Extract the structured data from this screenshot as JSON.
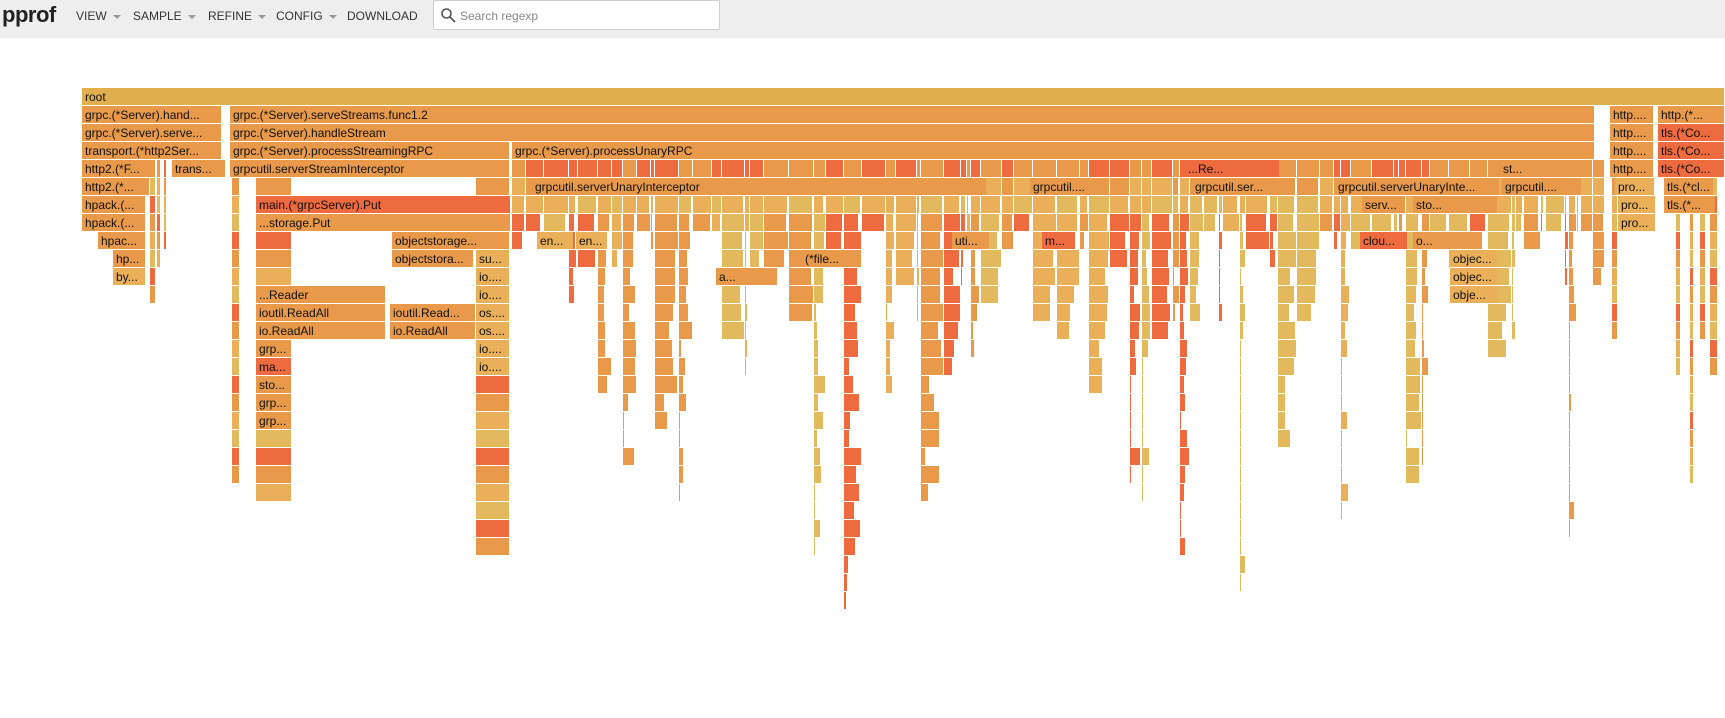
{
  "app": {
    "title": "pprof"
  },
  "menu": [
    {
      "label": "VIEW",
      "dropdown": true
    },
    {
      "label": "SAMPLE",
      "dropdown": true
    },
    {
      "label": "REFINE",
      "dropdown": true
    },
    {
      "label": "CONFIG",
      "dropdown": true
    },
    {
      "label": "DOWNLOAD",
      "dropdown": false
    }
  ],
  "search": {
    "placeholder": "Search regexp",
    "value": ""
  },
  "colors": {
    "root": "#e0b04f",
    "orange": "#e89a4a",
    "red_orange": "#ee6a3f",
    "light_orange": "#eab059",
    "yellow": "#e2b95c"
  },
  "flame": {
    "rows": [
      [
        {
          "label": "root",
          "color": "root",
          "span": "full"
        }
      ],
      [
        {
          "label": "grpc.(*Server).hand...",
          "color": "orange"
        },
        {
          "label": "grpc.(*Server).serveStreams.func1.2",
          "color": "orange"
        },
        {
          "label": "http....",
          "color": "orange"
        },
        {
          "label": "http.(*...",
          "color": "orange"
        }
      ],
      [
        {
          "label": "grpc.(*Server).serve...",
          "color": "orange"
        },
        {
          "label": "grpc.(*Server).handleStream",
          "color": "orange"
        },
        {
          "label": "http....",
          "color": "orange"
        },
        {
          "label": "tls.(*Co...",
          "color": "red_orange"
        }
      ],
      [
        {
          "label": "transport.(*http2Ser...",
          "color": "orange"
        },
        {
          "label": "grpc.(*Server).processStreamingRPC",
          "color": "orange"
        },
        {
          "label": "grpc.(*Server).processUnaryRPC",
          "color": "orange"
        },
        {
          "label": "http....",
          "color": "orange"
        },
        {
          "label": "tls.(*Co...",
          "color": "red_orange"
        }
      ],
      [
        {
          "label": "http2.(*F...",
          "color": "orange"
        },
        {
          "label": "trans...",
          "color": "orange"
        },
        {
          "label": "grpcutil.serverStreamInterceptor",
          "color": "orange"
        },
        {
          "label": "...Re...",
          "color": "red_orange"
        },
        {
          "label": "st...",
          "color": "orange"
        },
        {
          "label": "http....",
          "color": "orange"
        },
        {
          "label": "tls.(*Co...",
          "color": "red_orange"
        }
      ],
      [
        {
          "label": "http2.(*...",
          "color": "orange"
        },
        {
          "label": "grpcutil.serverUnaryInterceptor",
          "color": "orange"
        },
        {
          "label": "grpcutil....",
          "color": "orange"
        },
        {
          "label": "grpcutil.ser...",
          "color": "orange"
        },
        {
          "label": "grpcutil.serverUnaryInte...",
          "color": "orange"
        },
        {
          "label": "grpcutil....",
          "color": "orange"
        },
        {
          "label": "pro...",
          "color": "light_orange"
        },
        {
          "label": "tls.(*cl...",
          "color": "orange"
        }
      ],
      [
        {
          "label": "hpack.(...",
          "color": "orange"
        },
        {
          "label": "main.(*grpcServer).Put",
          "color": "red_orange"
        },
        {
          "label": "serv...",
          "color": "orange"
        },
        {
          "label": "sto...",
          "color": "orange"
        },
        {
          "label": "pro...",
          "color": "light_orange"
        },
        {
          "label": "tls.(*...",
          "color": "orange"
        }
      ],
      [
        {
          "label": "hpack.(...",
          "color": "orange"
        },
        {
          "label": "...storage.Put",
          "color": "orange"
        },
        {
          "label": "pro...",
          "color": "light_orange"
        }
      ],
      [
        {
          "label": "hpac...",
          "color": "orange"
        },
        {
          "label": "objectstorage...",
          "color": "orange"
        },
        {
          "label": "en...",
          "color": "light_orange"
        },
        {
          "label": "en...",
          "color": "light_orange"
        },
        {
          "label": "uti...",
          "color": "orange"
        },
        {
          "label": "m...",
          "color": "red_orange"
        },
        {
          "label": "clou...",
          "color": "red_orange"
        },
        {
          "label": "o...",
          "color": "orange"
        }
      ],
      [
        {
          "label": "hp...",
          "color": "orange"
        },
        {
          "label": "objectstora...",
          "color": "orange"
        },
        {
          "label": "su...",
          "color": "light_orange"
        },
        {
          "label": "(*file...",
          "color": "orange"
        },
        {
          "label": "objec...",
          "color": "light_orange"
        }
      ],
      [
        {
          "label": "by...",
          "color": "light_orange"
        },
        {
          "label": "io....",
          "color": "light_orange"
        },
        {
          "label": "a...",
          "color": "orange"
        },
        {
          "label": "objec...",
          "color": "light_orange"
        }
      ],
      [
        {
          "label": "...Reader",
          "color": "orange"
        },
        {
          "label": "io....",
          "color": "light_orange"
        },
        {
          "label": "obje...",
          "color": "light_orange"
        }
      ],
      [
        {
          "label": "ioutil.ReadAll",
          "color": "orange"
        },
        {
          "label": "ioutil.Read...",
          "color": "orange"
        },
        {
          "label": "os....",
          "color": "light_orange"
        }
      ],
      [
        {
          "label": "io.ReadAll",
          "color": "orange"
        },
        {
          "label": "io.ReadAll",
          "color": "orange"
        },
        {
          "label": "os....",
          "color": "light_orange"
        }
      ],
      [
        {
          "label": "grp...",
          "color": "orange"
        },
        {
          "label": "io....",
          "color": "light_orange"
        }
      ],
      [
        {
          "label": "ma...",
          "color": "red_orange"
        },
        {
          "label": "io....",
          "color": "light_orange"
        }
      ],
      [
        {
          "label": "sto...",
          "color": "orange"
        }
      ],
      [
        {
          "label": "grp...",
          "color": "orange"
        }
      ],
      [
        {
          "label": "grp...",
          "color": "orange"
        }
      ]
    ]
  }
}
